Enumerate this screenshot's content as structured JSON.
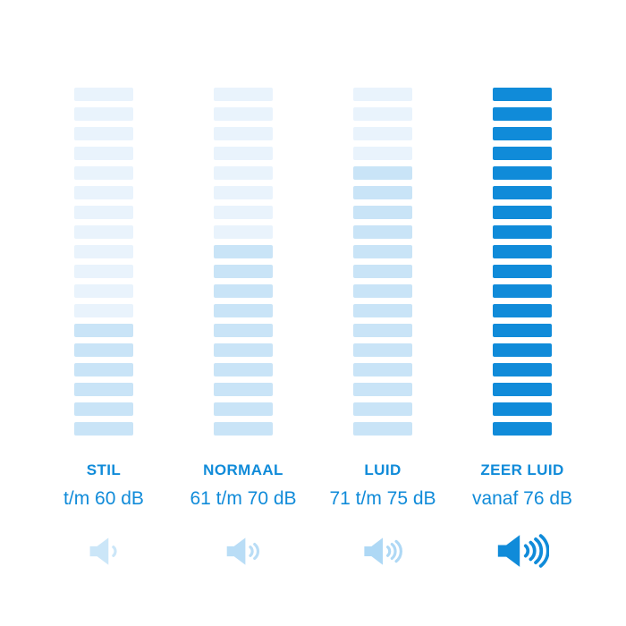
{
  "accent_color": "#108BD9",
  "background_color": "#FFFFFF",
  "bar_palette": {
    "light": "#E9F3FC",
    "medium": "#C9E4F7",
    "solid": "#108BD9"
  },
  "chart_data": {
    "type": "bar",
    "title": "",
    "subtitle": "",
    "description": "Sound level infographic with four vertical stacks of 18 horizontal bars each; shading deepens from left (quiet) to right (very loud), with speaker icons showing 1 to 4 sound waves.",
    "categories": [
      "STIL",
      "NORMAAL",
      "LUID",
      "ZEER LUID"
    ],
    "ranges_db": [
      "t/m 60 dB",
      "61 t/m 70 dB",
      "71 t/m 75 dB",
      "vanaf 76 dB"
    ],
    "bars_per_column": 18,
    "highlighted_bars_per_column": [
      6,
      10,
      14,
      18
    ],
    "columns": [
      {
        "label": "STIL",
        "range": "t/m 60 dB",
        "bars_total": 18,
        "bars_light_count": 12,
        "bar_light_color": "#E9F3FC",
        "bar_dark_color": "#C9E4F7",
        "waves": 1,
        "icon": "speaker-1-wave-icon",
        "icon_color": "#CBE6F8",
        "icon_scale": 1
      },
      {
        "label": "NORMAAL",
        "range": "61 t/m 70 dB",
        "bars_total": 18,
        "bars_light_count": 8,
        "bar_light_color": "#E9F3FC",
        "bar_dark_color": "#C9E4F7",
        "waves": 2,
        "icon": "speaker-2-waves-icon",
        "icon_color": "#B9DDF6",
        "icon_scale": 1
      },
      {
        "label": "LUID",
        "range": "71 t/m 75 dB",
        "bars_total": 18,
        "bars_light_count": 4,
        "bar_light_color": "#E9F3FC",
        "bar_dark_color": "#C9E4F7",
        "waves": 3,
        "icon": "speaker-3-waves-icon",
        "icon_color": "#AED8F5",
        "icon_scale": 1
      },
      {
        "label": "ZEER LUID",
        "range": "vanaf 76 dB",
        "bars_total": 18,
        "bars_light_count": 0,
        "bar_light_color": "#108BD9",
        "bar_dark_color": "#108BD9",
        "waves": 4,
        "icon": "speaker-4-waves-icon",
        "icon_color": "#108BD9",
        "icon_scale": 1.18
      }
    ],
    "legend": null,
    "grid": false,
    "axis_labels": {
      "x": "",
      "y": ""
    }
  }
}
